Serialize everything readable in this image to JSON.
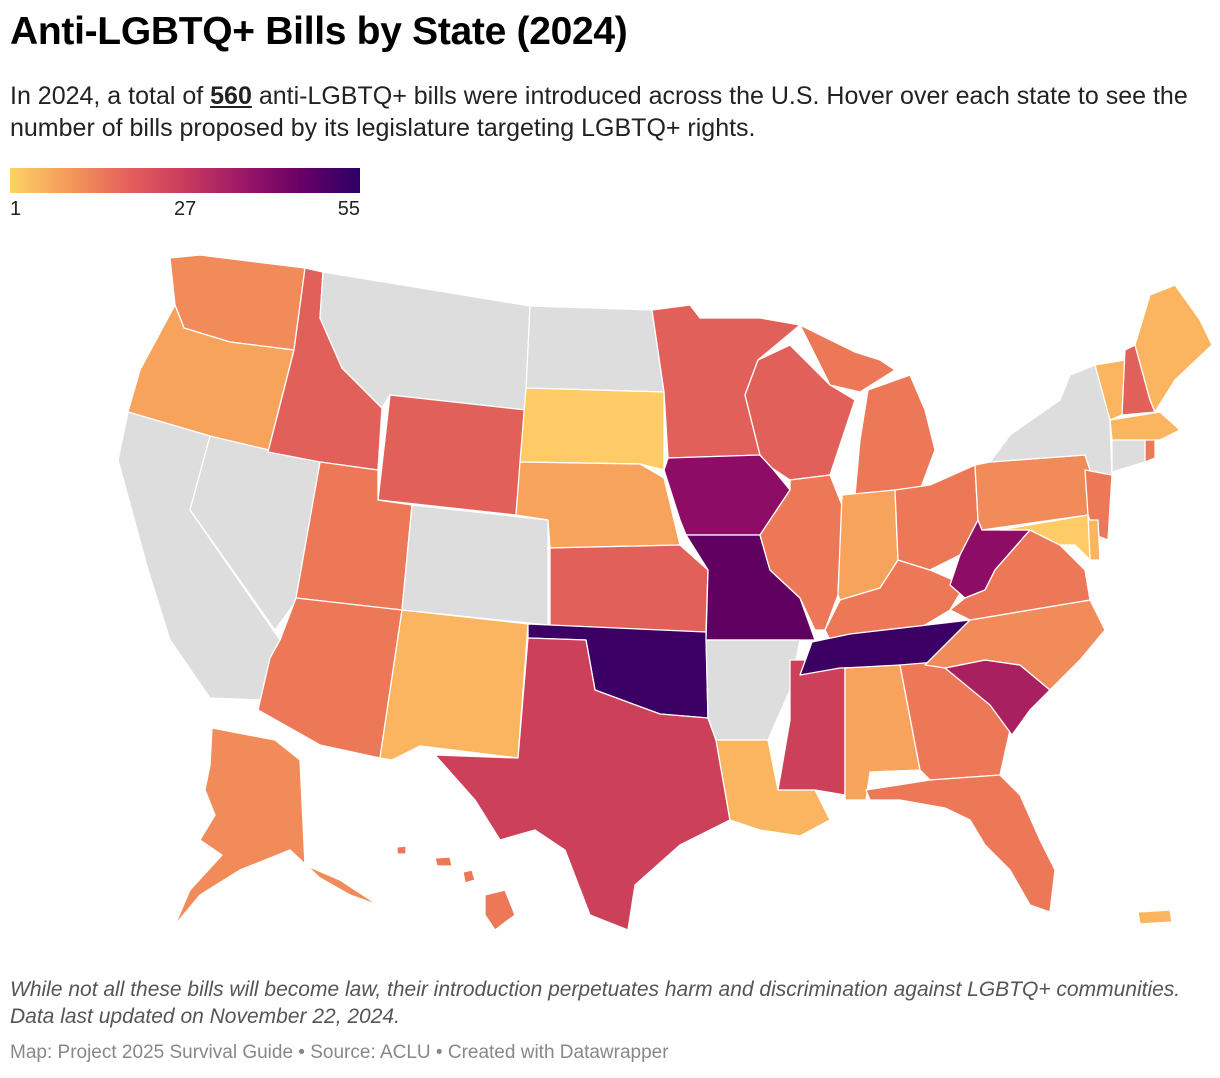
{
  "title": "Anti-LGBTQ+ Bills by State (2024)",
  "subtitle": {
    "before": "In 2024, a total of ",
    "highlight": "560",
    "after": " anti-LGBTQ+ bills were introduced across the U.S. Hover over each state to see the number of bills proposed by its legislature targeting LGBTQ+ rights."
  },
  "legend": {
    "min_label": "1",
    "mid_label": "27",
    "max_label": "55",
    "gradient_colors": [
      "#fed265",
      "#f49a5a",
      "#e6615d",
      "#c93a5e",
      "#9c1768",
      "#660066",
      "#2c0066"
    ]
  },
  "colors": {
    "no_data": "#dddddd",
    "yellow": "#fecb67",
    "light_orange": "#fbb560",
    "orange": "#f8a35c",
    "coral_orange": "#f28b5a",
    "coral": "#ec7858",
    "red_coral": "#e2605a",
    "crimson": "#cc405a",
    "magenta": "#a92060",
    "dark_magenta": "#8c0c66",
    "purple": "#600060",
    "dark_purple": "#3c0064"
  },
  "map": {
    "states": [
      {
        "code": "WA",
        "color_key": "coral_orange"
      },
      {
        "code": "OR",
        "color_key": "orange"
      },
      {
        "code": "CA",
        "color_key": "no_data"
      },
      {
        "code": "NV",
        "color_key": "no_data"
      },
      {
        "code": "ID",
        "color_key": "red_coral"
      },
      {
        "code": "MT",
        "color_key": "no_data"
      },
      {
        "code": "WY",
        "color_key": "red_coral"
      },
      {
        "code": "UT",
        "color_key": "coral"
      },
      {
        "code": "AZ",
        "color_key": "coral"
      },
      {
        "code": "NM",
        "color_key": "light_orange"
      },
      {
        "code": "CO",
        "color_key": "no_data"
      },
      {
        "code": "ND",
        "color_key": "no_data"
      },
      {
        "code": "SD",
        "color_key": "yellow"
      },
      {
        "code": "NE",
        "color_key": "orange"
      },
      {
        "code": "KS",
        "color_key": "red_coral"
      },
      {
        "code": "OK",
        "color_key": "dark_purple"
      },
      {
        "code": "TX",
        "color_key": "crimson"
      },
      {
        "code": "MN",
        "color_key": "red_coral"
      },
      {
        "code": "IA",
        "color_key": "dark_magenta"
      },
      {
        "code": "MO",
        "color_key": "purple"
      },
      {
        "code": "AR",
        "color_key": "no_data"
      },
      {
        "code": "LA",
        "color_key": "light_orange"
      },
      {
        "code": "WI",
        "color_key": "red_coral"
      },
      {
        "code": "IL",
        "color_key": "coral"
      },
      {
        "code": "MS",
        "color_key": "crimson"
      },
      {
        "code": "MI",
        "color_key": "coral"
      },
      {
        "code": "IN",
        "color_key": "orange"
      },
      {
        "code": "KY",
        "color_key": "coral"
      },
      {
        "code": "TN",
        "color_key": "dark_purple"
      },
      {
        "code": "AL",
        "color_key": "orange"
      },
      {
        "code": "OH",
        "color_key": "coral"
      },
      {
        "code": "WV",
        "color_key": "dark_magenta"
      },
      {
        "code": "GA",
        "color_key": "coral"
      },
      {
        "code": "FL",
        "color_key": "coral"
      },
      {
        "code": "SC",
        "color_key": "magenta"
      },
      {
        "code": "NC",
        "color_key": "coral_orange"
      },
      {
        "code": "VA",
        "color_key": "coral"
      },
      {
        "code": "PA",
        "color_key": "coral_orange"
      },
      {
        "code": "NY",
        "color_key": "no_data"
      },
      {
        "code": "NJ",
        "color_key": "coral"
      },
      {
        "code": "DE",
        "color_key": "light_orange"
      },
      {
        "code": "MD",
        "color_key": "yellow"
      },
      {
        "code": "CT",
        "color_key": "no_data"
      },
      {
        "code": "RI",
        "color_key": "coral"
      },
      {
        "code": "MA",
        "color_key": "light_orange"
      },
      {
        "code": "VT",
        "color_key": "light_orange"
      },
      {
        "code": "NH",
        "color_key": "red_coral"
      },
      {
        "code": "ME",
        "color_key": "light_orange"
      },
      {
        "code": "AK",
        "color_key": "coral_orange"
      },
      {
        "code": "HI",
        "color_key": "coral"
      },
      {
        "code": "PR",
        "color_key": "light_orange"
      }
    ]
  },
  "note": "While not all these bills will become law, their introduction perpetuates harm and discrimination against LGBTQ+ communities. Data last updated on November 22, 2024.",
  "credits": "Map: Project 2025 Survival Guide • Source: ACLU • Created with Datawrapper"
}
